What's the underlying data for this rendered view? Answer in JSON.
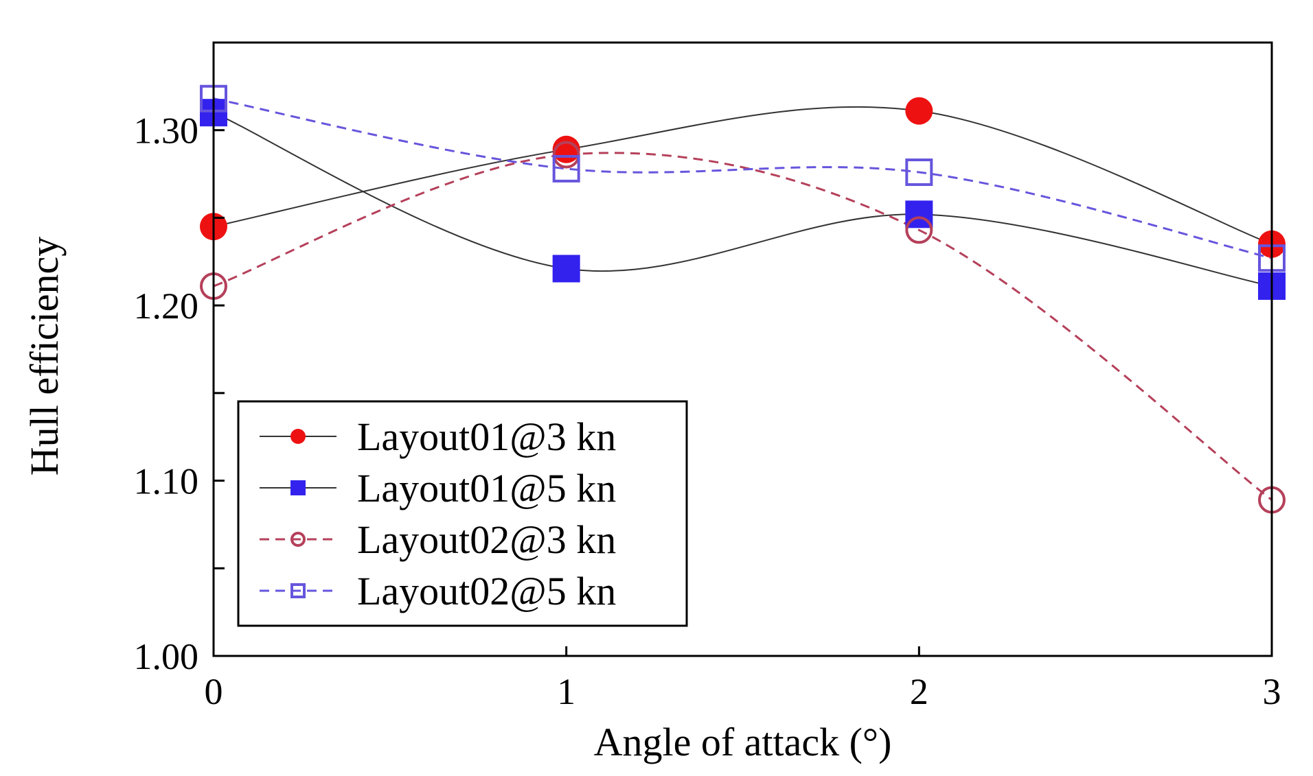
{
  "chart_data": {
    "type": "line",
    "xlabel": "Angle of attack (°)",
    "ylabel": "Hull efficiency",
    "x": [
      0,
      1,
      2,
      3
    ],
    "xlim": [
      0,
      3
    ],
    "ylim": [
      1.0,
      1.35
    ],
    "xticks": [
      "0",
      "1",
      "2",
      "3"
    ],
    "yticks": [
      "1.00",
      "1.10",
      "1.20",
      "1.30"
    ],
    "grid": false,
    "legend_position": "bottom-left",
    "series": [
      {
        "name": "Layout01@3 kn",
        "values": [
          1.245,
          1.289,
          1.311,
          1.235
        ],
        "color": "#ee1111",
        "marker": "filled-circle",
        "line": "solid",
        "line_color": "#333333"
      },
      {
        "name": "Layout01@5 kn",
        "values": [
          1.31,
          1.221,
          1.252,
          1.211
        ],
        "color": "#3322ee",
        "marker": "filled-square",
        "line": "solid",
        "line_color": "#333333"
      },
      {
        "name": "Layout02@3 kn",
        "values": [
          1.211,
          1.286,
          1.243,
          1.089
        ],
        "color": "#b5405a",
        "marker": "open-circle",
        "line": "dashed",
        "line_color": "#b5405a"
      },
      {
        "name": "Layout02@5 kn",
        "values": [
          1.318,
          1.278,
          1.276,
          1.227
        ],
        "color": "#6655dd",
        "marker": "open-square",
        "line": "dashed",
        "line_color": "#6655dd"
      }
    ]
  }
}
